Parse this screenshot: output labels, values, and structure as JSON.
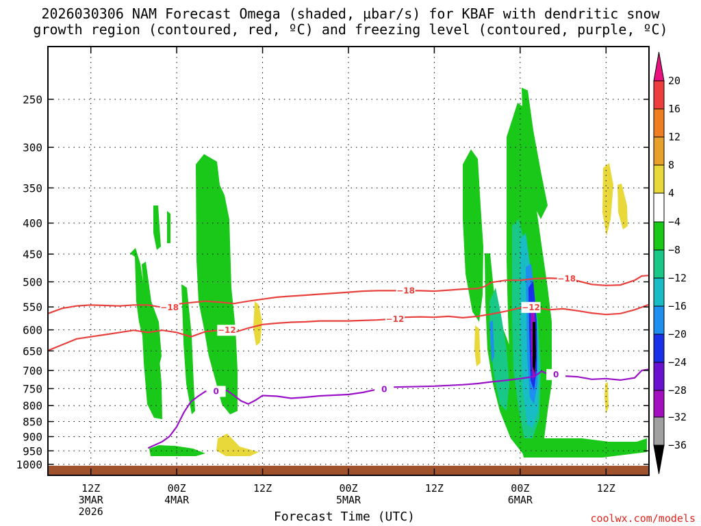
{
  "title_line1": "2026030306 NAM Forecast Omega (shaded, µbar/s) for KBAF with dendritic snow",
  "title_line2": "growth region (contoured, red, ºC) and freezing level (contoured, purple, ºC)",
  "credit": "coolwx.com/models",
  "chart_data": {
    "type": "contour",
    "title": "2026030306 NAM Forecast Omega (shaded, µbar/s) for KBAF with dendritic snow growth region (contoured, red, ºC) and freezing level (contoured, purple, ºC)",
    "xlabel": "Forecast Time (UTC)",
    "ylabel": "",
    "x_unit": "hours since 2026030306",
    "xlim": [
      0,
      84
    ],
    "y_scale": "log",
    "ylim": [
      1000,
      200
    ],
    "grid": true,
    "y_ticks": [
      250,
      300,
      350,
      400,
      450,
      500,
      550,
      600,
      650,
      700,
      750,
      800,
      850,
      900,
      950,
      1000
    ],
    "x_ticks": [
      {
        "x": 6,
        "label": [
          "12Z",
          "3MAR",
          "2026"
        ]
      },
      {
        "x": 18,
        "label": [
          "00Z",
          "4MAR"
        ]
      },
      {
        "x": 30,
        "label": [
          "12Z"
        ]
      },
      {
        "x": 42,
        "label": [
          "00Z",
          "5MAR"
        ]
      },
      {
        "x": 54,
        "label": [
          "12Z"
        ]
      },
      {
        "x": 66,
        "label": [
          "00Z",
          "6MAR"
        ]
      },
      {
        "x": 78,
        "label": [
          "12Z"
        ]
      }
    ],
    "colorbar": {
      "labels": [
        "20",
        "16",
        "12",
        "8",
        "4",
        "−4",
        "−8",
        "−12",
        "−16",
        "−20",
        "−24",
        "−28",
        "−32",
        "−36"
      ],
      "colors": [
        "#e8117f",
        "#ee3d3d",
        "#ef7e22",
        "#e8a02c",
        "#e8d83a",
        "#ffffff",
        "#19c819",
        "#19c887",
        "#17bcc4",
        "#1e8fef",
        "#1a2fe8",
        "#6a10cf",
        "#a30fbf",
        "#a0a0a0",
        "#000000"
      ]
    },
    "terrain_color": "#a0522d",
    "series": [
      {
        "name": "−18",
        "color": "#e8403c",
        "label_at": [
          [
            17,
            "−18"
          ],
          [
            50,
            "−18"
          ],
          [
            72.5,
            "−18"
          ]
        ],
        "points": [
          [
            0,
            564
          ],
          [
            2,
            553
          ],
          [
            4,
            548
          ],
          [
            6,
            546
          ],
          [
            8,
            547
          ],
          [
            10,
            548
          ],
          [
            12,
            546
          ],
          [
            14,
            546
          ],
          [
            16,
            551
          ],
          [
            18,
            544
          ],
          [
            20,
            541
          ],
          [
            22,
            538
          ],
          [
            24,
            540
          ],
          [
            26,
            543
          ],
          [
            28,
            538
          ],
          [
            30,
            534
          ],
          [
            32,
            530
          ],
          [
            34,
            528
          ],
          [
            36,
            526
          ],
          [
            38,
            524
          ],
          [
            40,
            522
          ],
          [
            42,
            520
          ],
          [
            44,
            518
          ],
          [
            46,
            517
          ],
          [
            48,
            517
          ],
          [
            50,
            517
          ],
          [
            52,
            517
          ],
          [
            54,
            518
          ],
          [
            56,
            516
          ],
          [
            58,
            514
          ],
          [
            60,
            513
          ],
          [
            61,
            509
          ],
          [
            62,
            501
          ],
          [
            64,
            497
          ],
          [
            66,
            497
          ],
          [
            68,
            494
          ],
          [
            70,
            493
          ],
          [
            72,
            494
          ],
          [
            74,
            498
          ],
          [
            76,
            505
          ],
          [
            78,
            507
          ],
          [
            80,
            506
          ],
          [
            82,
            497
          ],
          [
            83,
            489
          ],
          [
            84,
            488
          ]
        ]
      },
      {
        "name": "−12",
        "color": "#e8403c",
        "label_at": [
          [
            25,
            "−12"
          ],
          [
            48.5,
            "−12"
          ],
          [
            67.5,
            "−12"
          ]
        ],
        "points": [
          [
            0,
            649
          ],
          [
            2,
            635
          ],
          [
            4,
            621
          ],
          [
            6,
            616
          ],
          [
            8,
            611
          ],
          [
            10,
            606
          ],
          [
            12,
            601
          ],
          [
            14,
            606
          ],
          [
            16,
            601
          ],
          [
            18,
            606
          ],
          [
            20,
            616
          ],
          [
            22,
            604
          ],
          [
            24,
            601
          ],
          [
            26,
            606
          ],
          [
            28,
            596
          ],
          [
            30,
            588
          ],
          [
            32,
            585
          ],
          [
            34,
            583
          ],
          [
            36,
            582
          ],
          [
            38,
            580
          ],
          [
            40,
            580
          ],
          [
            42,
            580
          ],
          [
            44,
            579
          ],
          [
            46,
            578
          ],
          [
            48,
            576
          ],
          [
            50,
            572
          ],
          [
            52,
            571
          ],
          [
            54,
            572
          ],
          [
            56,
            570
          ],
          [
            58,
            573
          ],
          [
            60,
            570
          ],
          [
            62,
            565
          ],
          [
            64,
            559
          ],
          [
            66,
            552
          ],
          [
            68,
            551
          ],
          [
            70,
            556
          ],
          [
            72,
            554
          ],
          [
            74,
            558
          ],
          [
            76,
            563
          ],
          [
            78,
            566
          ],
          [
            80,
            564
          ],
          [
            82,
            556
          ],
          [
            84,
            545
          ]
        ]
      },
      {
        "name": "0",
        "color": "#9a10c8",
        "label_at": [
          [
            23.5,
            "0"
          ],
          [
            47,
            "0"
          ],
          [
            71,
            "0"
          ]
        ],
        "points": [
          [
            14,
            940
          ],
          [
            16,
            917
          ],
          [
            17,
            899
          ],
          [
            18,
            867
          ],
          [
            19,
            821
          ],
          [
            20,
            788
          ],
          [
            21,
            772
          ],
          [
            22,
            758
          ],
          [
            23,
            758
          ],
          [
            24,
            761
          ],
          [
            25,
            755
          ],
          [
            26,
            770
          ],
          [
            27,
            786
          ],
          [
            28,
            795
          ],
          [
            29,
            784
          ],
          [
            30,
            770
          ],
          [
            32,
            772
          ],
          [
            34,
            778
          ],
          [
            36,
            775
          ],
          [
            38,
            771
          ],
          [
            40,
            769
          ],
          [
            42,
            767
          ],
          [
            44,
            761
          ],
          [
            46,
            752
          ],
          [
            48,
            746
          ],
          [
            50,
            745
          ],
          [
            52,
            744
          ],
          [
            54,
            743
          ],
          [
            56,
            741
          ],
          [
            58,
            739
          ],
          [
            60,
            736
          ],
          [
            62,
            731
          ],
          [
            64,
            727
          ],
          [
            66,
            722
          ],
          [
            68,
            716
          ],
          [
            69,
            702
          ],
          [
            70,
            711
          ],
          [
            72,
            715
          ],
          [
            74,
            717
          ],
          [
            76,
            724
          ],
          [
            78,
            722
          ],
          [
            80,
            726
          ],
          [
            82,
            720
          ],
          [
            83,
            700
          ],
          [
            84,
            697
          ]
        ]
      }
    ]
  }
}
